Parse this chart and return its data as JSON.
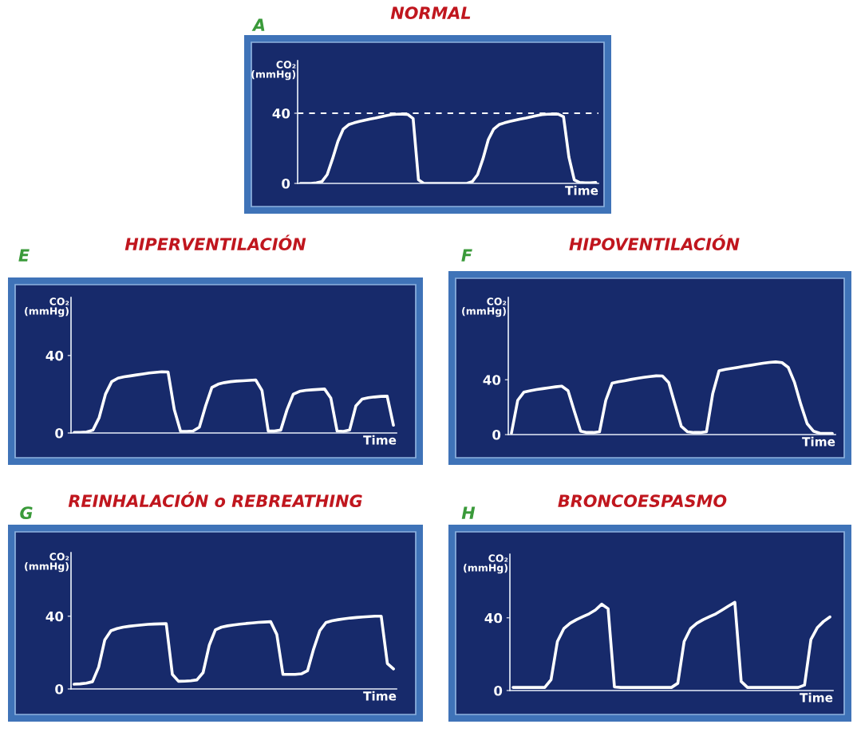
{
  "chart_data": [
    {
      "type": "line",
      "title": "NORMAL",
      "ylabel": "CO₂\n(mmHg)",
      "xlabel": "Time",
      "annotations": [
        "A"
      ],
      "tick_labels": "y",
      "ylim": [
        0,
        70
      ],
      "yticks": [
        0,
        40
      ],
      "ref_lines": [
        {
          "axis": "y",
          "value": 40,
          "color": "#ffffff",
          "line_style": "dashed"
        }
      ],
      "categories": [
        null,
        null,
        null,
        null,
        null,
        null,
        null,
        null,
        null,
        null,
        null,
        null,
        null,
        null,
        null,
        null,
        null,
        null,
        null,
        null,
        null,
        null,
        null,
        null,
        null,
        null,
        null,
        null,
        null,
        null,
        null,
        null,
        null,
        null,
        null,
        null,
        null,
        null,
        null,
        null,
        null,
        null,
        null,
        null,
        null,
        null,
        null,
        null,
        null,
        null,
        null,
        null,
        null,
        null,
        null,
        null
      ],
      "series": [
        {
          "color": "#ffffff",
          "values": [
            0,
            0,
            0,
            0.3,
            1,
            5,
            14,
            24,
            31,
            33.5,
            34.5,
            35.3,
            36,
            36.7,
            37.3,
            38,
            38.6,
            39.2,
            39.4,
            39.5,
            39.3,
            37,
            2,
            0,
            0,
            0,
            0,
            0,
            0,
            0,
            0,
            0,
            1,
            5,
            14,
            25,
            31,
            33.5,
            34.5,
            35.3,
            36,
            36.7,
            37.3,
            38,
            38.6,
            39.2,
            39.4,
            39.5,
            39.5,
            38,
            15,
            2,
            0.5,
            0.3,
            0.3,
            0.5
          ]
        }
      ]
    },
    {
      "type": "line",
      "title": "HIPERVENTILACIÓN",
      "ylabel": "CO₂\n(mmHg)",
      "xlabel": "Time",
      "annotations": [
        "E"
      ],
      "tick_labels": "y",
      "ylim": [
        0,
        70
      ],
      "yticks": [
        0,
        40
      ],
      "categories": [
        null,
        null,
        null,
        null,
        null,
        null,
        null,
        null,
        null,
        null,
        null,
        null,
        null,
        null,
        null,
        null,
        null,
        null,
        null,
        null,
        null,
        null,
        null,
        null,
        null,
        null,
        null,
        null,
        null,
        null,
        null,
        null,
        null,
        null,
        null,
        null,
        null,
        null,
        null,
        null,
        null,
        null,
        null,
        null,
        null,
        null,
        null,
        null,
        null,
        null,
        null,
        null
      ],
      "series": [
        {
          "color": "#ffffff",
          "values": [
            0.3,
            0.3,
            0.5,
            1.5,
            8,
            20,
            26.5,
            28.3,
            29,
            29.5,
            30,
            30.5,
            31,
            31.3,
            31.6,
            31.5,
            12,
            0.8,
            0.8,
            1,
            3,
            14,
            23.5,
            25.2,
            26,
            26.5,
            26.8,
            27,
            27.2,
            27.4,
            22,
            1,
            1,
            1.5,
            12,
            20,
            21.5,
            22,
            22.3,
            22.5,
            22.7,
            18,
            1,
            0.8,
            1.5,
            14,
            17.5,
            18.2,
            18.6,
            18.9,
            19,
            4
          ]
        }
      ]
    },
    {
      "type": "line",
      "title": "HIPOVENTILACIÓN",
      "ylabel": "CO₂\n(mmHg)",
      "xlabel": "Time",
      "annotations": [
        "F"
      ],
      "tick_labels": "y",
      "ylim": [
        0,
        100
      ],
      "yticks": [
        0,
        40
      ],
      "categories": [
        null,
        null,
        null,
        null,
        null,
        null,
        null,
        null,
        null,
        null,
        null,
        null,
        null,
        null,
        null,
        null,
        null,
        null,
        null,
        null,
        null,
        null,
        null,
        null,
        null,
        null,
        null,
        null,
        null,
        null,
        null,
        null,
        null,
        null,
        null,
        null,
        null,
        null,
        null,
        null,
        null,
        null,
        null,
        null,
        null,
        null,
        null,
        null,
        null,
        null,
        null,
        null
      ],
      "series": [
        {
          "color": "#ffffff",
          "values": [
            1,
            25,
            31,
            32,
            32.8,
            33.5,
            34.2,
            34.8,
            35.3,
            32,
            17,
            2.5,
            1.5,
            1.5,
            2,
            25,
            37.5,
            38.5,
            39.3,
            40.2,
            41,
            41.7,
            42.3,
            42.8,
            42.7,
            38,
            22,
            6,
            2,
            1.5,
            1.5,
            2,
            30,
            46.5,
            47.5,
            48.3,
            49,
            49.8,
            50.5,
            51.3,
            52,
            52.6,
            53,
            52.5,
            49,
            38,
            22,
            8,
            2.5,
            1,
            0.8,
            0.8
          ]
        }
      ]
    },
    {
      "type": "line",
      "title": "REINHALACIÓN o REBREATHING",
      "ylabel": "CO₂\n(mmHg)",
      "xlabel": "Time",
      "annotations": [
        "G"
      ],
      "tick_labels": "y",
      "ylim": [
        0,
        75
      ],
      "yticks": [
        0,
        40
      ],
      "categories": [
        null,
        null,
        null,
        null,
        null,
        null,
        null,
        null,
        null,
        null,
        null,
        null,
        null,
        null,
        null,
        null,
        null,
        null,
        null,
        null,
        null,
        null,
        null,
        null,
        null,
        null,
        null,
        null,
        null,
        null,
        null,
        null,
        null,
        null,
        null,
        null,
        null,
        null,
        null,
        null,
        null,
        null,
        null,
        null,
        null,
        null,
        null,
        null,
        null,
        null,
        null,
        null,
        null
      ],
      "series": [
        {
          "color": "#ffffff",
          "values": [
            2.6,
            2.8,
            3.2,
            4,
            12,
            27,
            32,
            33.2,
            34,
            34.5,
            34.9,
            35.2,
            35.5,
            35.7,
            35.8,
            35.9,
            8,
            4.2,
            4.3,
            4.5,
            5,
            9,
            24,
            32.5,
            34,
            34.7,
            35.2,
            35.6,
            36,
            36.3,
            36.6,
            36.8,
            37,
            30,
            8,
            8,
            8,
            8.3,
            10,
            22,
            32,
            36.5,
            37.5,
            38.1,
            38.6,
            39,
            39.3,
            39.6,
            39.8,
            40,
            40,
            14,
            11
          ]
        }
      ]
    },
    {
      "type": "line",
      "title": "BRONCOESPASMO",
      "ylabel": "CO₂\n(mmHg)",
      "xlabel": "Time",
      "annotations": [
        "H"
      ],
      "tick_labels": "y",
      "ylim": [
        0,
        75
      ],
      "yticks": [
        0,
        40
      ],
      "categories": [
        null,
        null,
        null,
        null,
        null,
        null,
        null,
        null,
        null,
        null,
        null,
        null,
        null,
        null,
        null,
        null,
        null,
        null,
        null,
        null,
        null,
        null,
        null,
        null,
        null,
        null,
        null,
        null,
        null,
        null,
        null,
        null,
        null,
        null,
        null,
        null,
        null,
        null,
        null,
        null,
        null,
        null,
        null,
        null,
        null,
        null,
        null,
        null,
        null,
        null,
        null
      ],
      "series": [
        {
          "color": "#ffffff",
          "values": [
            1.7,
            1.7,
            1.7,
            1.7,
            1.7,
            1.7,
            6,
            27,
            34,
            37,
            39,
            40.6,
            42.2,
            44.3,
            47.5,
            45,
            2,
            1.7,
            1.7,
            1.7,
            1.7,
            1.7,
            1.7,
            1.7,
            1.7,
            1.7,
            4,
            27,
            34,
            37,
            39,
            40.6,
            42.2,
            44.3,
            46.5,
            48.5,
            5,
            1.7,
            1.7,
            1.7,
            1.7,
            1.7,
            1.7,
            1.7,
            1.7,
            1.7,
            3,
            28,
            34.5,
            38,
            40.5
          ]
        }
      ]
    }
  ]
}
